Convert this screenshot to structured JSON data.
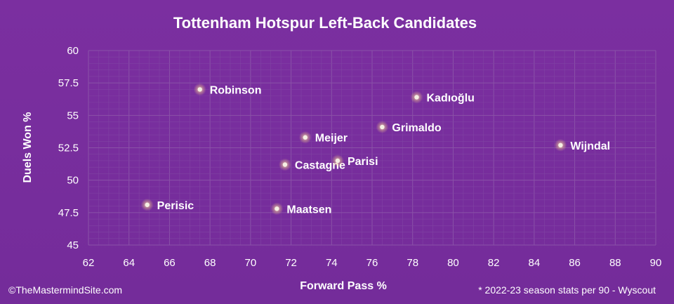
{
  "chart_data": {
    "type": "scatter",
    "title": "Tottenham Hotspur Left-Back Candidates",
    "xlabel": "Forward Pass %",
    "ylabel": "Duels Won %",
    "xlim": [
      62,
      90
    ],
    "ylim": [
      45,
      60
    ],
    "x_ticks": [
      "62",
      "64",
      "66",
      "68",
      "70",
      "72",
      "74",
      "76",
      "78",
      "80",
      "82",
      "84",
      "86",
      "88",
      "90"
    ],
    "y_ticks": [
      "45",
      "47.5",
      "50",
      "52.5",
      "55",
      "57.5",
      "60"
    ],
    "grid": "on",
    "points": [
      {
        "label": "Robinson",
        "x": 67.5,
        "y": 57.0
      },
      {
        "label": "Kadıoğlu",
        "x": 78.2,
        "y": 56.4
      },
      {
        "label": "Grimaldo",
        "x": 76.5,
        "y": 54.1
      },
      {
        "label": "Meijer",
        "x": 72.7,
        "y": 53.3
      },
      {
        "label": "Wijndal",
        "x": 85.3,
        "y": 52.7
      },
      {
        "label": "Castagne",
        "x": 71.7,
        "y": 51.2
      },
      {
        "label": "Parisi",
        "x": 74.3,
        "y": 51.5
      },
      {
        "label": "Perisic",
        "x": 64.9,
        "y": 48.1
      },
      {
        "label": "Maatsen",
        "x": 71.3,
        "y": 47.8
      }
    ],
    "marker_color": "#f5efe4",
    "background_color": "#7a2f9e"
  },
  "footer": {
    "left": "©TheMastermindSite.com",
    "right": "* 2022-23 season stats per 90 - Wyscout"
  }
}
